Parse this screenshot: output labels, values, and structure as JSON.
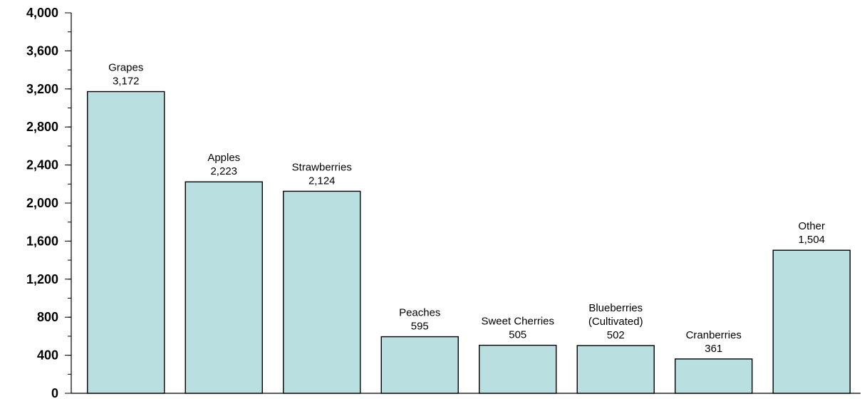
{
  "chart_data": {
    "type": "bar",
    "title": "",
    "xlabel": "",
    "ylabel": "",
    "categories": [
      [
        "Grapes"
      ],
      [
        "Apples"
      ],
      [
        "Strawberries"
      ],
      [
        "Peaches"
      ],
      [
        "Sweet Cherries"
      ],
      [
        "Blueberries",
        "(Cultivated)"
      ],
      [
        "Cranberries"
      ],
      [
        "Other"
      ]
    ],
    "values": [
      3172,
      2223,
      2124,
      595,
      505,
      502,
      361,
      1504
    ],
    "value_labels": [
      "3,172",
      "2,223",
      "2,124",
      "595",
      "505",
      "502",
      "361",
      "1,504"
    ],
    "ylim": [
      0,
      4000
    ],
    "y_major_ticks": [
      0,
      400,
      800,
      1200,
      1600,
      2000,
      2400,
      2800,
      3200,
      3600,
      4000
    ],
    "y_tick_labels": [
      "0",
      "400",
      "800",
      "1,200",
      "1,600",
      "2,000",
      "2,400",
      "2,800",
      "3,200",
      "3,600",
      "4,000"
    ],
    "y_minor_step": 200,
    "grid": false,
    "legend": "none",
    "bar_color": "#b9dfe1",
    "bar_edge_color": "#000000"
  }
}
